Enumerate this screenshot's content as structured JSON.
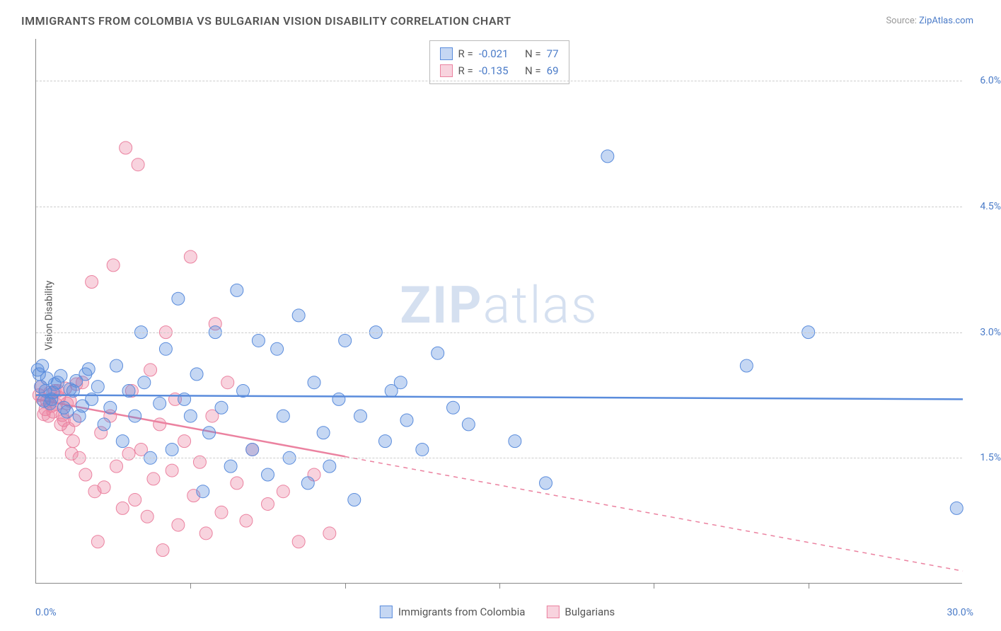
{
  "title": "IMMIGRANTS FROM COLOMBIA VS BULGARIAN VISION DISABILITY CORRELATION CHART",
  "source_label": "Source:",
  "source_name": "ZipAtlas.com",
  "watermark_a": "ZIP",
  "watermark_b": "atlas",
  "y_axis_title": "Vision Disability",
  "chart": {
    "type": "scatter",
    "xlim": [
      0.0,
      30.0
    ],
    "ylim": [
      0.0,
      6.5
    ],
    "x_tick_labels": [
      "0.0%",
      "30.0%"
    ],
    "y_tick_labels": [
      "1.5%",
      "3.0%",
      "4.5%",
      "6.0%"
    ],
    "y_tick_values": [
      1.5,
      3.0,
      4.5,
      6.0
    ],
    "x_minor_ticks": [
      5,
      10,
      15,
      20,
      25
    ],
    "grid_color": "#cccccc",
    "axis_color": "#888888",
    "background_color": "#ffffff",
    "label_color": "#4a7bc8",
    "title_color": "#555555",
    "title_fontsize": 16,
    "label_fontsize": 14
  },
  "series": {
    "colombia": {
      "label": "Immigrants from Colombia",
      "color_fill": "rgba(90,140,220,0.35)",
      "color_stroke": "#5a8cdc",
      "marker_radius": 9,
      "R_label": "R =",
      "R": "-0.021",
      "N_label": "N =",
      "N": "77",
      "trend_y_start": 2.25,
      "trend_y_end": 2.2,
      "trend_solid_until": 30.0,
      "line_width": 2.5,
      "points": [
        [
          0.1,
          2.5
        ],
        [
          0.3,
          2.3
        ],
        [
          0.5,
          2.2
        ],
        [
          0.7,
          2.4
        ],
        [
          0.9,
          2.1
        ],
        [
          1.2,
          2.3
        ],
        [
          1.4,
          2.0
        ],
        [
          1.6,
          2.5
        ],
        [
          1.8,
          2.2
        ],
        [
          2.0,
          2.35
        ],
        [
          2.2,
          1.9
        ],
        [
          2.4,
          2.1
        ],
        [
          2.6,
          2.6
        ],
        [
          2.8,
          1.7
        ],
        [
          3.0,
          2.3
        ],
        [
          3.2,
          2.0
        ],
        [
          3.4,
          3.0
        ],
        [
          3.5,
          2.4
        ],
        [
          3.7,
          1.5
        ],
        [
          4.0,
          2.15
        ],
        [
          4.2,
          2.8
        ],
        [
          4.4,
          1.6
        ],
        [
          4.6,
          3.4
        ],
        [
          4.8,
          2.2
        ],
        [
          5.0,
          2.0
        ],
        [
          5.2,
          2.5
        ],
        [
          5.4,
          1.1
        ],
        [
          5.6,
          1.8
        ],
        [
          5.8,
          3.0
        ],
        [
          6.0,
          2.1
        ],
        [
          6.3,
          1.4
        ],
        [
          6.5,
          3.5
        ],
        [
          6.7,
          2.3
        ],
        [
          7.0,
          1.6
        ],
        [
          7.2,
          2.9
        ],
        [
          7.5,
          1.3
        ],
        [
          7.8,
          2.8
        ],
        [
          8.0,
          2.0
        ],
        [
          8.2,
          1.5
        ],
        [
          8.5,
          3.2
        ],
        [
          8.8,
          1.2
        ],
        [
          9.0,
          2.4
        ],
        [
          9.3,
          1.8
        ],
        [
          9.5,
          1.4
        ],
        [
          9.8,
          2.2
        ],
        [
          10.0,
          2.9
        ],
        [
          10.3,
          1.0
        ],
        [
          10.5,
          2.0
        ],
        [
          11.0,
          3.0
        ],
        [
          11.3,
          1.7
        ],
        [
          11.5,
          2.3
        ],
        [
          11.8,
          2.4
        ],
        [
          12.0,
          1.95
        ],
        [
          12.5,
          1.6
        ],
        [
          13.0,
          2.75
        ],
        [
          13.5,
          2.1
        ],
        [
          14.0,
          1.9
        ],
        [
          15.5,
          1.7
        ],
        [
          16.5,
          1.2
        ],
        [
          18.5,
          5.1
        ],
        [
          23.0,
          2.6
        ],
        [
          25.0,
          3.0
        ],
        [
          29.8,
          0.9
        ],
        [
          0.05,
          2.55
        ],
        [
          0.15,
          2.35
        ],
        [
          0.2,
          2.6
        ],
        [
          0.35,
          2.45
        ],
        [
          0.45,
          2.15
        ],
        [
          0.55,
          2.28
        ],
        [
          0.25,
          2.18
        ],
        [
          0.6,
          2.38
        ],
        [
          0.8,
          2.48
        ],
        [
          1.0,
          2.05
        ],
        [
          1.1,
          2.32
        ],
        [
          1.3,
          2.42
        ],
        [
          1.5,
          2.12
        ],
        [
          1.7,
          2.56
        ]
      ]
    },
    "bulgarians": {
      "label": "Bulgarians",
      "color_fill": "rgba(235,130,160,0.35)",
      "color_stroke": "#eb82a0",
      "marker_radius": 9,
      "R_label": "R =",
      "R": "-0.135",
      "N_label": "N =",
      "N": "69",
      "trend_y_start": 2.2,
      "trend_y_end": 0.15,
      "trend_solid_until": 10.0,
      "line_width": 2.5,
      "points": [
        [
          0.2,
          2.2
        ],
        [
          0.4,
          2.0
        ],
        [
          0.6,
          2.3
        ],
        [
          0.8,
          1.9
        ],
        [
          1.0,
          2.15
        ],
        [
          1.2,
          1.7
        ],
        [
          1.4,
          1.5
        ],
        [
          1.5,
          2.4
        ],
        [
          1.6,
          1.3
        ],
        [
          1.8,
          3.6
        ],
        [
          1.9,
          1.1
        ],
        [
          2.0,
          0.5
        ],
        [
          2.1,
          1.8
        ],
        [
          2.2,
          1.15
        ],
        [
          2.4,
          2.0
        ],
        [
          2.5,
          3.8
        ],
        [
          2.6,
          1.4
        ],
        [
          2.8,
          0.9
        ],
        [
          2.9,
          5.2
        ],
        [
          3.0,
          1.55
        ],
        [
          3.1,
          2.3
        ],
        [
          3.2,
          1.0
        ],
        [
          3.3,
          5.0
        ],
        [
          3.4,
          1.6
        ],
        [
          3.6,
          0.8
        ],
        [
          3.7,
          2.55
        ],
        [
          3.8,
          1.25
        ],
        [
          4.0,
          1.9
        ],
        [
          4.1,
          0.4
        ],
        [
          4.2,
          3.0
        ],
        [
          4.4,
          1.35
        ],
        [
          4.5,
          2.2
        ],
        [
          4.6,
          0.7
        ],
        [
          4.8,
          1.7
        ],
        [
          5.0,
          3.9
        ],
        [
          5.1,
          1.05
        ],
        [
          5.3,
          1.45
        ],
        [
          5.5,
          0.6
        ],
        [
          5.7,
          2.0
        ],
        [
          5.8,
          3.1
        ],
        [
          6.0,
          0.85
        ],
        [
          6.2,
          2.4
        ],
        [
          6.5,
          1.2
        ],
        [
          6.8,
          0.75
        ],
        [
          7.0,
          1.6
        ],
        [
          7.5,
          0.95
        ],
        [
          8.0,
          1.1
        ],
        [
          8.5,
          0.5
        ],
        [
          9.0,
          1.3
        ],
        [
          9.5,
          0.6
        ],
        [
          0.1,
          2.25
        ],
        [
          0.3,
          2.08
        ],
        [
          0.5,
          2.12
        ],
        [
          0.7,
          2.3
        ],
        [
          0.9,
          1.95
        ],
        [
          1.1,
          2.18
        ],
        [
          1.3,
          2.38
        ],
        [
          0.15,
          2.35
        ],
        [
          0.25,
          2.02
        ],
        [
          0.35,
          2.18
        ],
        [
          0.45,
          2.28
        ],
        [
          0.55,
          2.05
        ],
        [
          0.65,
          2.14
        ],
        [
          0.75,
          2.22
        ],
        [
          0.85,
          2.01
        ],
        [
          0.95,
          2.33
        ],
        [
          1.05,
          1.85
        ],
        [
          1.15,
          1.55
        ],
        [
          1.25,
          1.95
        ]
      ]
    }
  }
}
